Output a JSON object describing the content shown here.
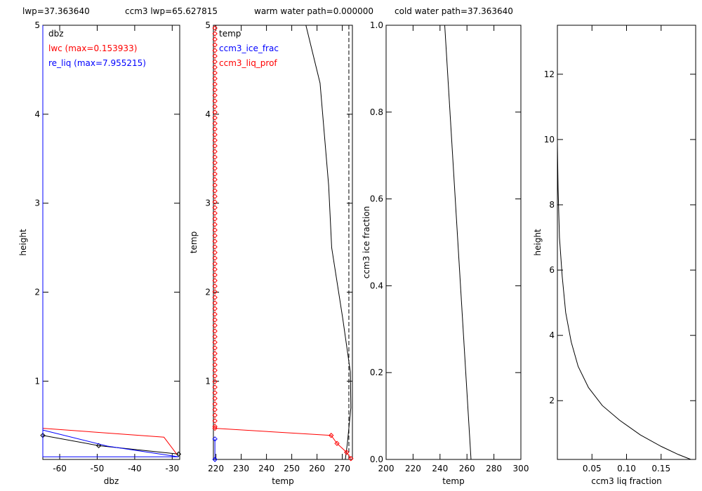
{
  "header": {
    "lwp": "lwp=37.363640",
    "ccm3_lwp": "ccm3 lwp=65.627815",
    "warm_water_path": "warm water path=0.000000",
    "cold_water_path": "cold water path=37.363640"
  },
  "colors": {
    "black": "#000000",
    "red": "#ff0000",
    "blue": "#0000ff"
  },
  "chart_data": [
    {
      "type": "line",
      "panel": "dbz-height",
      "xlabel": "dbz",
      "ylabel": "height",
      "xlim": [
        -64.5,
        -28
      ],
      "ylim": [
        0.12,
        5
      ],
      "xticks": [
        -60,
        -50,
        -40,
        -30
      ],
      "yticks": [
        1,
        2,
        3,
        4,
        5
      ],
      "legend": [
        {
          "text": "dbz",
          "color": "#000000"
        },
        {
          "text": "lwc (max=0.153933)",
          "color": "#ff0000"
        },
        {
          "text": "re_liq (max=7.955215)",
          "color": "#0000ff"
        }
      ],
      "series": [
        {
          "name": "dbz",
          "color": "#000000",
          "marker": "diamond",
          "points": [
            [
              -64.5,
              0.39
            ],
            [
              -49.6,
              0.275
            ],
            [
              -28.3,
              0.18
            ]
          ]
        },
        {
          "name": "lwc",
          "color": "#ff0000",
          "points": [
            [
              -64.5,
              0.47
            ],
            [
              -32.2,
              0.37
            ],
            [
              -28.8,
              0.18
            ]
          ]
        },
        {
          "name": "re_liq",
          "color": "#0000ff",
          "points": [
            [
              -64.5,
              0.45
            ],
            [
              -47.3,
              0.27
            ],
            [
              -28.3,
              0.15
            ],
            [
              -64.5,
              0.15
            ],
            [
              -64.5,
              5
            ]
          ]
        }
      ]
    },
    {
      "type": "line",
      "panel": "temp-temp",
      "xlabel": "temp",
      "ylabel": "temp",
      "xlim": [
        219,
        274
      ],
      "ylim": [
        0.12,
        5
      ],
      "xticks": [
        220,
        230,
        240,
        250,
        260,
        270
      ],
      "yticks": [
        1,
        2,
        3,
        4,
        5
      ],
      "dashed_x": 272.6,
      "legend": [
        {
          "text": "temp",
          "color": "#000000"
        },
        {
          "text": "ccm3_ice_frac",
          "color": "#0000ff"
        },
        {
          "text": "ccm3_liq_prof",
          "color": "#ff0000"
        }
      ],
      "series": [
        {
          "name": "temp",
          "color": "#000000",
          "points": [
            [
              255.6,
              5.0
            ],
            [
              261.2,
              4.35
            ],
            [
              264.6,
              3.2
            ],
            [
              265.8,
              2.5
            ],
            [
              270.2,
              1.7
            ],
            [
              273.2,
              1.1
            ],
            [
              273.4,
              0.7
            ],
            [
              272.0,
              0.3
            ],
            [
              271.2,
              0.12
            ]
          ]
        },
        {
          "name": "ccm3_liq_prof",
          "color": "#ff0000",
          "marker": "diamond",
          "points": [
            [
              219.6,
              0.47
            ],
            [
              265.6,
              0.39
            ],
            [
              267.9,
              0.3
            ],
            [
              271.7,
              0.2
            ],
            [
              273.4,
              0.13
            ]
          ]
        },
        {
          "name": "ccm3_ice_frac",
          "color": "#0000ff",
          "marker": "diamond",
          "points": [
            [
              219.6,
              0.12
            ],
            [
              219.6,
              0.35
            ]
          ]
        }
      ],
      "red_marker_column_x": 219.6
    },
    {
      "type": "line",
      "panel": "temp-icefrac",
      "xlabel": "temp",
      "ylabel": "ccm3 ice fraction",
      "xlim": [
        200,
        300
      ],
      "ylim": [
        0,
        1
      ],
      "xticks": [
        200,
        220,
        240,
        260,
        280,
        300
      ],
      "yticks": [
        0.0,
        0.2,
        0.4,
        0.6,
        0.8,
        1.0
      ],
      "ytick_labels": [
        "0.0",
        "0.2",
        "0.4",
        "0.6",
        "0.8",
        "1.0"
      ],
      "series": [
        {
          "name": "",
          "color": "#000000",
          "points": [
            [
              243.5,
              1.0
            ],
            [
              263.0,
              0.0
            ]
          ]
        }
      ]
    },
    {
      "type": "line",
      "panel": "liqfrac-height",
      "xlabel": "ccm3 liq fraction",
      "ylabel": "height",
      "xlim": [
        0,
        0.2
      ],
      "ylim": [
        0.2,
        13.5
      ],
      "xticks": [
        0.05,
        0.1,
        0.15
      ],
      "xtick_labels": [
        "0.05",
        "0.10",
        "0.15"
      ],
      "yticks": [
        2,
        4,
        6,
        8,
        10,
        12
      ],
      "series": [
        {
          "name": "",
          "color": "#000000",
          "points": [
            [
              0.0,
              9.9
            ],
            [
              0.001,
              8.5
            ],
            [
              0.003,
              7.0
            ],
            [
              0.007,
              5.8
            ],
            [
              0.012,
              4.7
            ],
            [
              0.02,
              3.8
            ],
            [
              0.03,
              3.05
            ],
            [
              0.045,
              2.4
            ],
            [
              0.065,
              1.85
            ],
            [
              0.09,
              1.4
            ],
            [
              0.12,
              0.95
            ],
            [
              0.15,
              0.6
            ],
            [
              0.175,
              0.35
            ],
            [
              0.193,
              0.2
            ]
          ]
        }
      ]
    }
  ]
}
